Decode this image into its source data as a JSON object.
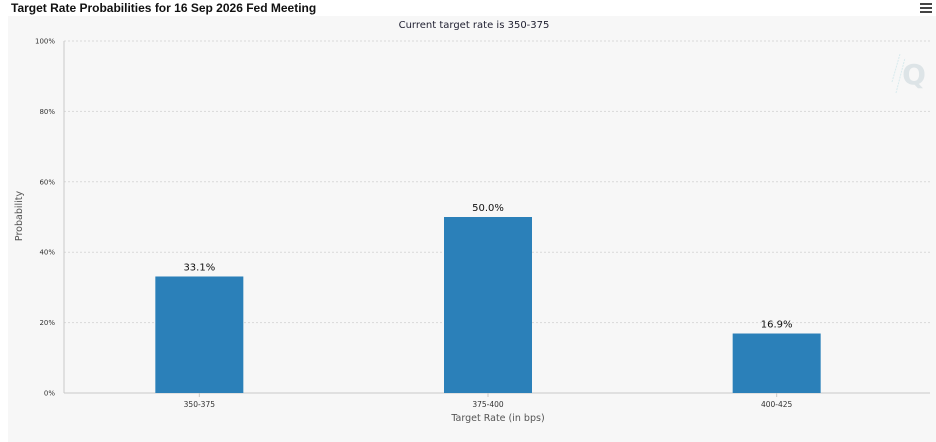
{
  "header": {
    "title": "Target Rate Probabilities for 16 Sep 2026 Fed Meeting"
  },
  "icons": {
    "menu": "hamburger-menu-icon",
    "watermark": "q-logo-watermark"
  },
  "colors": {
    "bar": "#2b80b9",
    "grid": "#d9d9d9",
    "axis": "#c8c8c8"
  },
  "chart_data": {
    "type": "bar",
    "title": "Target Rate Probabilities for 16 Sep 2026 Fed Meeting",
    "subtitle": "Current target rate is 350-375",
    "xlabel": "Target Rate (in bps)",
    "ylabel": "Probability",
    "ylim": [
      0,
      100
    ],
    "yticks": [
      "0%",
      "20%",
      "40%",
      "60%",
      "80%",
      "100%"
    ],
    "ytick_values": [
      0,
      20,
      40,
      60,
      80,
      100
    ],
    "categories": [
      "350-375",
      "375-400",
      "400-425"
    ],
    "values": [
      33.1,
      50.0,
      16.9
    ],
    "data_labels": [
      "33.1%",
      "50.0%",
      "16.9%"
    ],
    "grid": "horizontal-dashed",
    "legend": "none"
  }
}
